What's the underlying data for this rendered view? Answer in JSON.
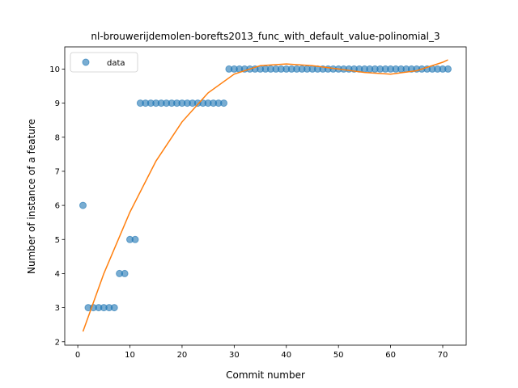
{
  "chart_data": {
    "type": "scatter",
    "title": "nl-brouwerijdemolen-borefts2013_func_with_default_value-polinomial_3",
    "xlabel": "Commit number",
    "ylabel": "Number of instance of a feature",
    "xlim": [
      -2.5,
      74.5
    ],
    "ylim": [
      1.9,
      10.65
    ],
    "xticks": [
      0,
      10,
      20,
      30,
      40,
      50,
      60,
      70
    ],
    "yticks": [
      2,
      3,
      4,
      5,
      6,
      7,
      8,
      9,
      10
    ],
    "grid": false,
    "legend": {
      "location": "top-left",
      "entries": [
        "data"
      ]
    },
    "series": [
      {
        "name": "data",
        "kind": "scatter",
        "color": "#1f77b4",
        "x": [
          1,
          2,
          3,
          4,
          5,
          6,
          7,
          8,
          9,
          10,
          11,
          12,
          13,
          14,
          15,
          16,
          17,
          18,
          19,
          20,
          21,
          22,
          23,
          24,
          25,
          26,
          27,
          28,
          29,
          30,
          31,
          32,
          33,
          34,
          35,
          36,
          37,
          38,
          39,
          40,
          41,
          42,
          43,
          44,
          45,
          46,
          47,
          48,
          49,
          50,
          51,
          52,
          53,
          54,
          55,
          56,
          57,
          58,
          59,
          60,
          61,
          62,
          63,
          64,
          65,
          66,
          67,
          68,
          69,
          70,
          71
        ],
        "y": [
          6,
          3,
          3,
          3,
          3,
          3,
          3,
          4,
          4,
          5,
          5,
          9,
          9,
          9,
          9,
          9,
          9,
          9,
          9,
          9,
          9,
          9,
          9,
          9,
          9,
          9,
          9,
          9,
          10,
          10,
          10,
          10,
          10,
          10,
          10,
          10,
          10,
          10,
          10,
          10,
          10,
          10,
          10,
          10,
          10,
          10,
          10,
          10,
          10,
          10,
          10,
          10,
          10,
          10,
          10,
          10,
          10,
          10,
          10,
          10,
          10,
          10,
          10,
          10,
          10,
          10,
          10,
          10,
          10,
          10,
          10
        ]
      },
      {
        "kind": "line",
        "color": "#ff7f0e",
        "x": [
          1,
          5,
          10,
          15,
          20,
          25,
          30,
          35,
          40,
          45,
          50,
          55,
          60,
          65,
          70,
          71
        ],
        "y": [
          2.3,
          4.0,
          5.8,
          7.3,
          8.45,
          9.3,
          9.85,
          10.1,
          10.15,
          10.1,
          10.0,
          9.9,
          9.85,
          9.95,
          10.2,
          10.27
        ]
      }
    ]
  }
}
